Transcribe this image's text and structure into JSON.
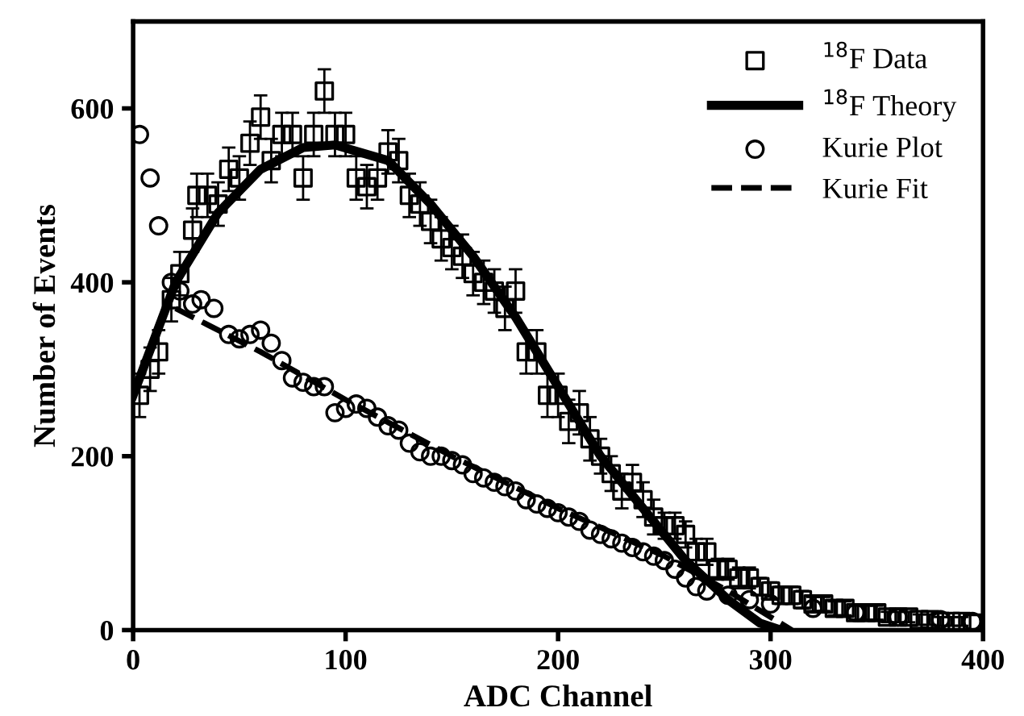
{
  "chart_data": {
    "type": "scatter",
    "xlabel": "ADC Channel",
    "ylabel": "Number of Events",
    "xlim": [
      0,
      400
    ],
    "ylim": [
      0,
      700
    ],
    "xticks": [
      0,
      100,
      200,
      300,
      400
    ],
    "yticks": [
      0,
      200,
      400,
      600
    ],
    "grid": false,
    "legend": "top right",
    "series": [
      {
        "name": "$^{18}$F Data",
        "marker": "square",
        "color": "#000000",
        "x": [
          3,
          8,
          12,
          18,
          22,
          28,
          30,
          35,
          40,
          45,
          50,
          55,
          60,
          65,
          70,
          75,
          80,
          85,
          90,
          95,
          100,
          105,
          110,
          115,
          120,
          125,
          130,
          135,
          140,
          145,
          150,
          155,
          160,
          165,
          170,
          175,
          180,
          185,
          190,
          195,
          200,
          205,
          210,
          215,
          220,
          225,
          230,
          235,
          240,
          245,
          250,
          255,
          260,
          265,
          270,
          275,
          280,
          285,
          290,
          295,
          300,
          305,
          310,
          315,
          320,
          325,
          330,
          335,
          340,
          345,
          350,
          355,
          360,
          365,
          370,
          375,
          380,
          385,
          390,
          395
        ],
        "values": [
          270,
          300,
          320,
          380,
          410,
          460,
          500,
          500,
          490,
          530,
          520,
          560,
          590,
          540,
          570,
          570,
          520,
          570,
          620,
          570,
          570,
          520,
          510,
          520,
          550,
          540,
          500,
          490,
          470,
          450,
          440,
          430,
          410,
          400,
          390,
          370,
          390,
          320,
          320,
          270,
          270,
          240,
          250,
          220,
          200,
          180,
          160,
          170,
          150,
          130,
          120,
          120,
          110,
          90,
          90,
          70,
          70,
          60,
          60,
          50,
          45,
          40,
          40,
          35,
          30,
          30,
          25,
          25,
          20,
          20,
          20,
          15,
          15,
          15,
          12,
          12,
          10,
          10,
          10,
          8
        ],
        "errors": [
          25,
          25,
          25,
          25,
          25,
          25,
          25,
          25,
          25,
          25,
          25,
          25,
          25,
          25,
          25,
          25,
          25,
          25,
          25,
          25,
          25,
          25,
          25,
          25,
          25,
          25,
          25,
          25,
          25,
          25,
          25,
          25,
          25,
          25,
          25,
          25,
          25,
          25,
          25,
          25,
          25,
          25,
          25,
          25,
          20,
          20,
          20,
          20,
          20,
          20,
          15,
          15,
          15,
          15,
          15,
          12,
          12,
          12,
          12,
          10,
          10,
          10,
          10,
          10,
          8,
          8,
          8,
          8,
          8,
          8,
          8,
          6,
          6,
          6,
          6,
          6,
          5,
          5,
          5,
          null
        ]
      },
      {
        "name": "$^{18}$F Theory",
        "type": "line",
        "line_style": "solid",
        "marker": "none",
        "color": "#000000",
        "x": [
          0,
          20,
          40,
          60,
          80,
          95,
          120,
          140,
          160,
          180,
          200,
          220,
          240,
          260,
          280,
          295,
          305
        ],
        "values": [
          270,
          400,
          480,
          530,
          555,
          558,
          540,
          490,
          430,
          360,
          280,
          200,
          140,
          80,
          35,
          8,
          0
        ]
      },
      {
        "name": "Kurie Plot",
        "marker": "circle",
        "color": "#000000",
        "x": [
          3,
          8,
          12,
          18,
          22,
          28,
          32,
          38,
          45,
          50,
          55,
          60,
          65,
          70,
          75,
          80,
          85,
          90,
          95,
          100,
          105,
          110,
          115,
          120,
          125,
          130,
          135,
          140,
          145,
          150,
          155,
          160,
          165,
          170,
          175,
          180,
          185,
          190,
          195,
          200,
          205,
          210,
          215,
          220,
          225,
          230,
          235,
          240,
          245,
          250,
          255,
          260,
          265,
          270,
          280,
          290,
          300,
          320,
          340,
          360,
          380,
          395
        ],
        "values": [
          570,
          520,
          465,
          400,
          390,
          375,
          380,
          370,
          340,
          335,
          340,
          345,
          330,
          310,
          290,
          285,
          280,
          280,
          250,
          255,
          260,
          255,
          245,
          235,
          230,
          215,
          205,
          200,
          200,
          195,
          190,
          180,
          175,
          170,
          165,
          160,
          150,
          145,
          140,
          135,
          130,
          125,
          115,
          110,
          105,
          100,
          95,
          90,
          85,
          80,
          70,
          60,
          50,
          45,
          40,
          35,
          30,
          25,
          20,
          15,
          12,
          10
        ]
      },
      {
        "name": "Kurie Fit",
        "type": "line",
        "line_style": "dashed",
        "marker": "none",
        "color": "#000000",
        "x": [
          20,
          60,
          100,
          150,
          200,
          250,
          280,
          300,
          310
        ],
        "values": [
          370,
          320,
          265,
          200,
          140,
          85,
          45,
          15,
          0
        ]
      }
    ]
  }
}
